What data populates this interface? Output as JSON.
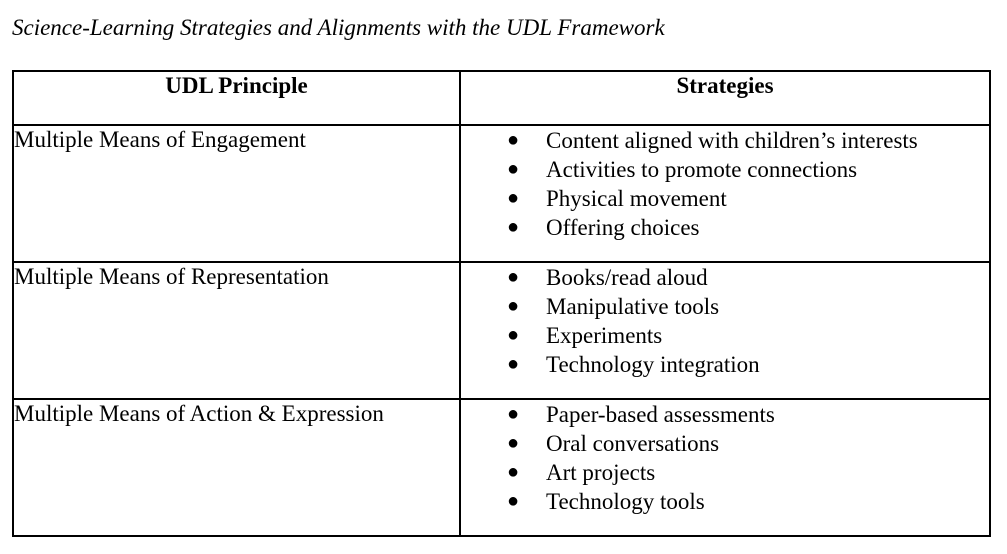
{
  "caption": "Science-Learning Strategies and Alignments with the UDL Framework",
  "table": {
    "headers": [
      "UDL Principle",
      "Strategies"
    ],
    "rows": [
      {
        "principle": "Multiple Means of Engagement",
        "strategies": [
          "Content aligned with children’s interests",
          "Activities to promote connections",
          "Physical movement",
          "Offering choices"
        ]
      },
      {
        "principle": "Multiple Means of Representation",
        "strategies": [
          "Books/read aloud",
          "Manipulative tools",
          "Experiments",
          "Technology integration"
        ]
      },
      {
        "principle": "Multiple Means of Action & Expression",
        "strategies": [
          "Paper-based assessments",
          "Oral conversations",
          "Art projects",
          "Technology tools"
        ]
      }
    ]
  },
  "bullet_icon": "bullet-dot-icon"
}
